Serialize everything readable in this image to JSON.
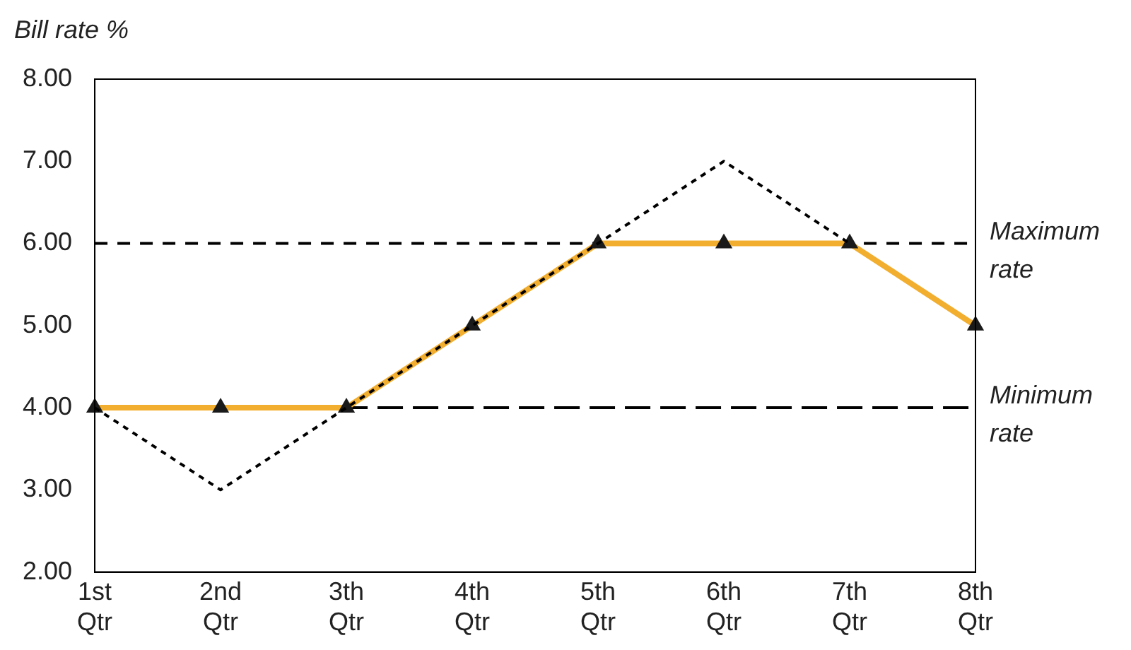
{
  "chart_data": {
    "type": "line",
    "ylabel": "Bill rate %",
    "categories": [
      "1st Qtr",
      "2nd Qtr",
      "3th Qtr",
      "4th Qtr",
      "5th Qtr",
      "6th Qtr",
      "7th Qtr",
      "8th Qtr"
    ],
    "series": [
      {
        "color": "#000000",
        "values": [
          4,
          3,
          4,
          5,
          6,
          7,
          6,
          null
        ],
        "line_style": "dotted",
        "marker": "none"
      },
      {
        "color": "#f2ae2e",
        "values": [
          4,
          4,
          4,
          5,
          6,
          6,
          6,
          5
        ],
        "line_style": "solid",
        "marker": "triangle"
      }
    ],
    "ylim": [
      2,
      8
    ],
    "yticks": [
      {
        "value": 2,
        "label": "2.00"
      },
      {
        "value": 3,
        "label": "3.00"
      },
      {
        "value": 4,
        "label": "4.00"
      },
      {
        "value": 5,
        "label": "5.00"
      },
      {
        "value": 6,
        "label": "6.00"
      },
      {
        "value": 7,
        "label": "7.00"
      },
      {
        "value": 8,
        "label": "8.00"
      }
    ],
    "ref_lines": [
      {
        "axis": "y",
        "value": 6,
        "label": "Maximum rate",
        "color": "#000000",
        "line_style": "dashed"
      },
      {
        "axis": "y",
        "value": 4,
        "label": "Minimum rate",
        "color": "#000000",
        "line_style": "longdash"
      }
    ],
    "grid": false,
    "legend": false
  }
}
